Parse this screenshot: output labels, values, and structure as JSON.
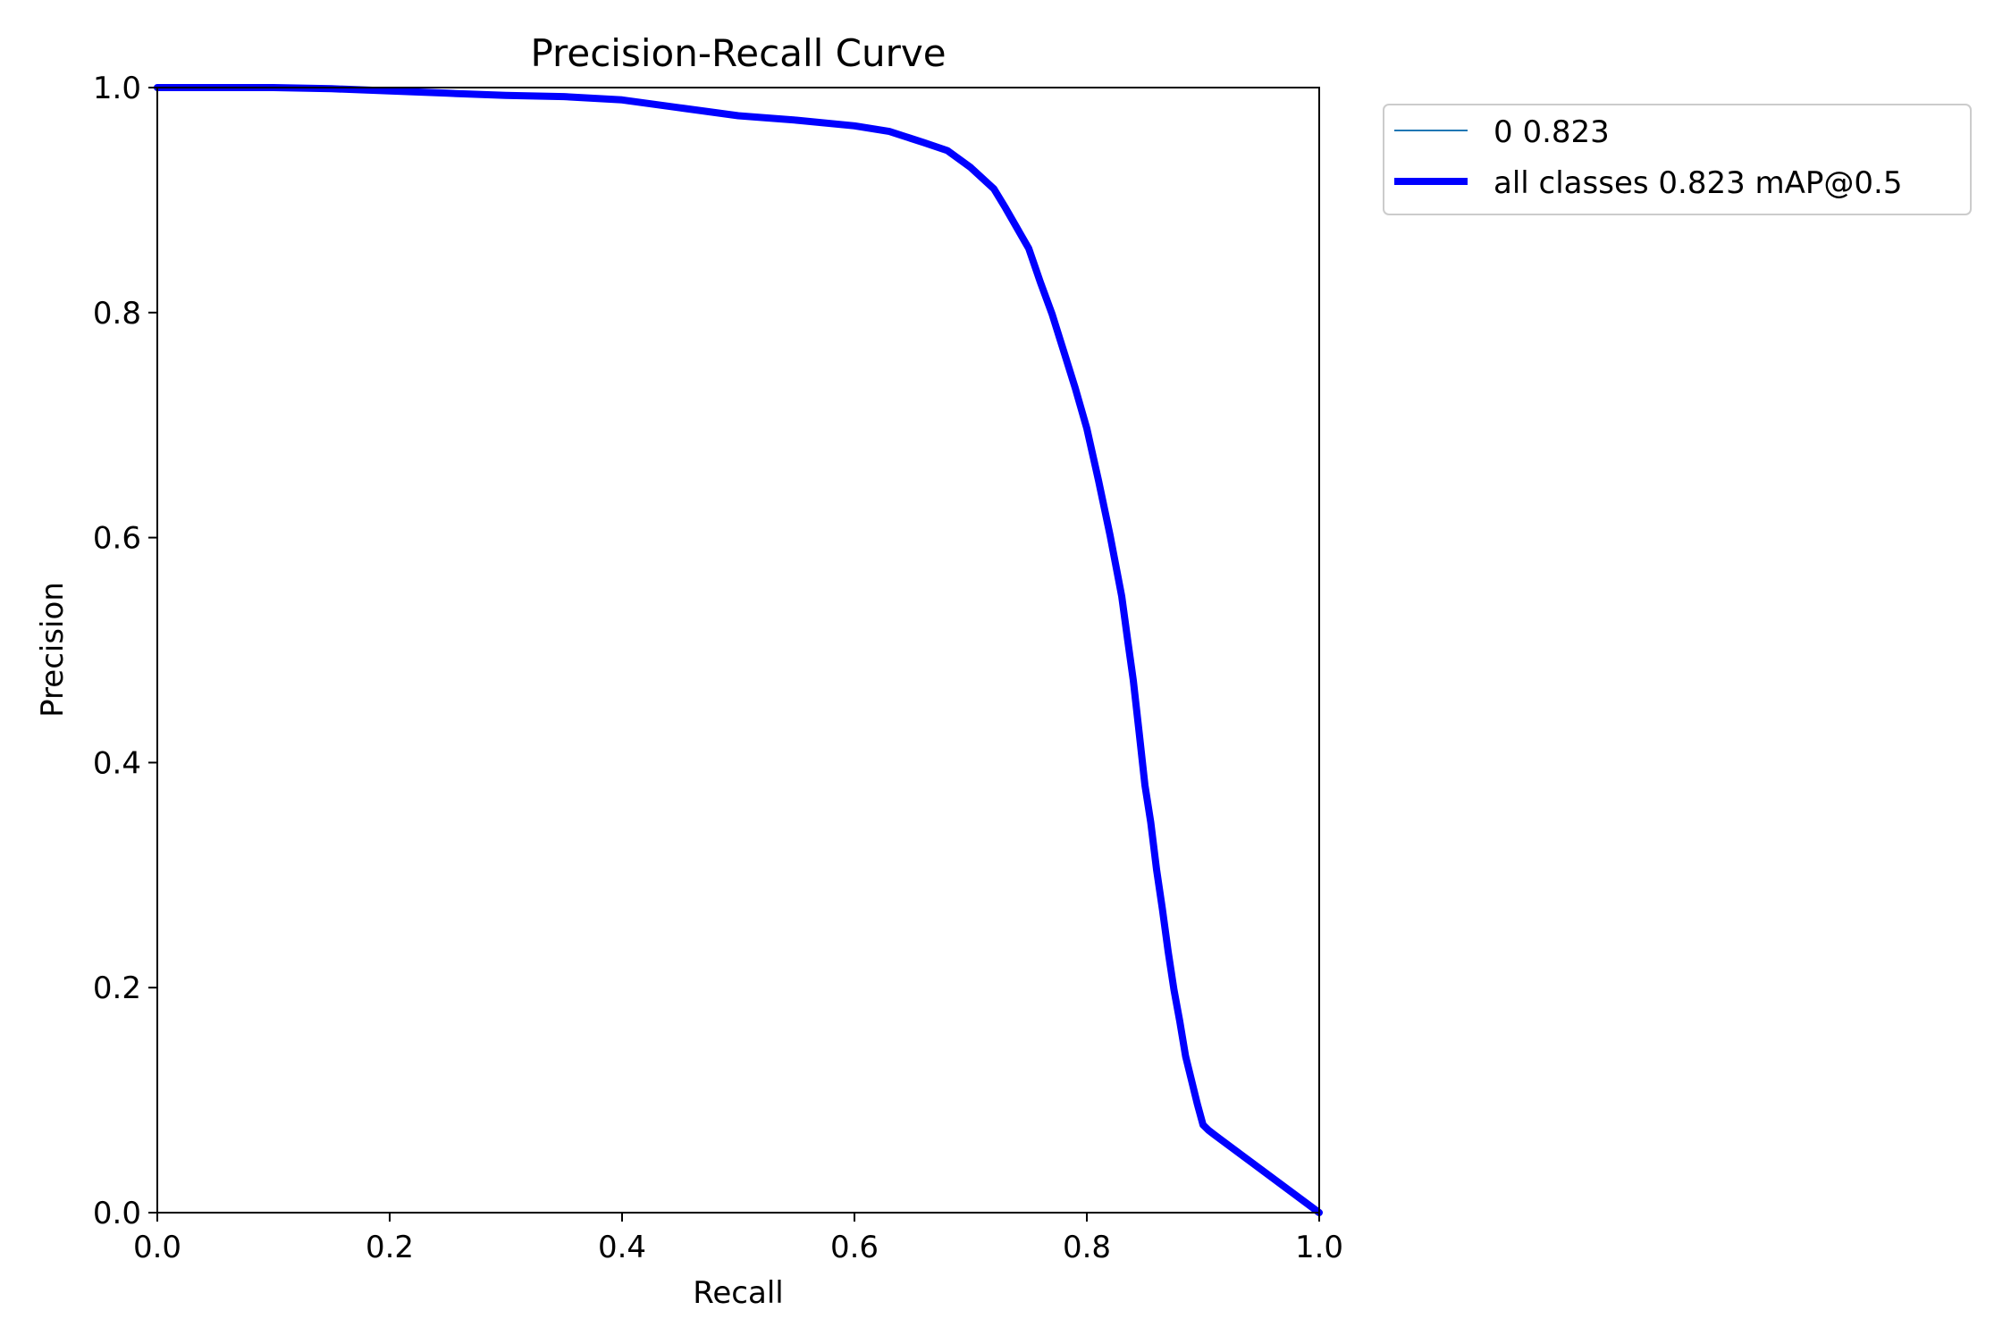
{
  "chart_data": {
    "type": "line",
    "title": "Precision-Recall Curve",
    "xlabel": "Recall",
    "ylabel": "Precision",
    "xlim": [
      0.0,
      1.0
    ],
    "ylim": [
      0.0,
      1.0
    ],
    "xticks": [
      "0.0",
      "0.2",
      "0.4",
      "0.6",
      "0.8",
      "1.0"
    ],
    "yticks": [
      "0.0",
      "0.2",
      "0.4",
      "0.6",
      "0.8",
      "1.0"
    ],
    "grid": false,
    "legend_position": "outside-top-right",
    "series": [
      {
        "name": "0 0.823",
        "color": "#1f77b4",
        "x": [
          0.0,
          0.05,
          0.1,
          0.15,
          0.2,
          0.25,
          0.3,
          0.35,
          0.4,
          0.45,
          0.5,
          0.55,
          0.6,
          0.63,
          0.66,
          0.68,
          0.7,
          0.72,
          0.73,
          0.74,
          0.75,
          0.76,
          0.77,
          0.78,
          0.79,
          0.8,
          0.81,
          0.82,
          0.83,
          0.835,
          0.84,
          0.845,
          0.85,
          0.855,
          0.86,
          0.865,
          0.87,
          0.875,
          0.88,
          0.885,
          0.89,
          0.895,
          0.9,
          0.905,
          0.91,
          1.0
        ],
        "y": [
          1.0,
          1.0,
          1.0,
          0.999,
          0.997,
          0.995,
          0.993,
          0.992,
          0.989,
          0.982,
          0.975,
          0.971,
          0.966,
          0.961,
          0.951,
          0.944,
          0.929,
          0.91,
          0.893,
          0.875,
          0.857,
          0.827,
          0.799,
          0.766,
          0.733,
          0.697,
          0.651,
          0.602,
          0.548,
          0.51,
          0.473,
          0.427,
          0.38,
          0.347,
          0.305,
          0.27,
          0.232,
          0.198,
          0.17,
          0.139,
          0.118,
          0.097,
          0.078,
          0.073,
          0.069,
          0.0
        ]
      },
      {
        "name": "all classes 0.823 mAP@0.5",
        "color": "#0000ff",
        "x": [
          0.0,
          0.05,
          0.1,
          0.15,
          0.2,
          0.25,
          0.3,
          0.35,
          0.4,
          0.45,
          0.5,
          0.55,
          0.6,
          0.63,
          0.66,
          0.68,
          0.7,
          0.72,
          0.73,
          0.74,
          0.75,
          0.76,
          0.77,
          0.78,
          0.79,
          0.8,
          0.81,
          0.82,
          0.83,
          0.835,
          0.84,
          0.845,
          0.85,
          0.855,
          0.86,
          0.865,
          0.87,
          0.875,
          0.88,
          0.885,
          0.89,
          0.895,
          0.9,
          0.905,
          0.91,
          1.0
        ],
        "y": [
          1.0,
          1.0,
          1.0,
          0.999,
          0.997,
          0.995,
          0.993,
          0.992,
          0.989,
          0.982,
          0.975,
          0.971,
          0.966,
          0.961,
          0.951,
          0.944,
          0.929,
          0.91,
          0.893,
          0.875,
          0.857,
          0.827,
          0.799,
          0.766,
          0.733,
          0.697,
          0.651,
          0.602,
          0.548,
          0.51,
          0.473,
          0.427,
          0.38,
          0.347,
          0.305,
          0.27,
          0.232,
          0.198,
          0.17,
          0.139,
          0.118,
          0.097,
          0.078,
          0.073,
          0.069,
          0.0
        ]
      }
    ]
  }
}
